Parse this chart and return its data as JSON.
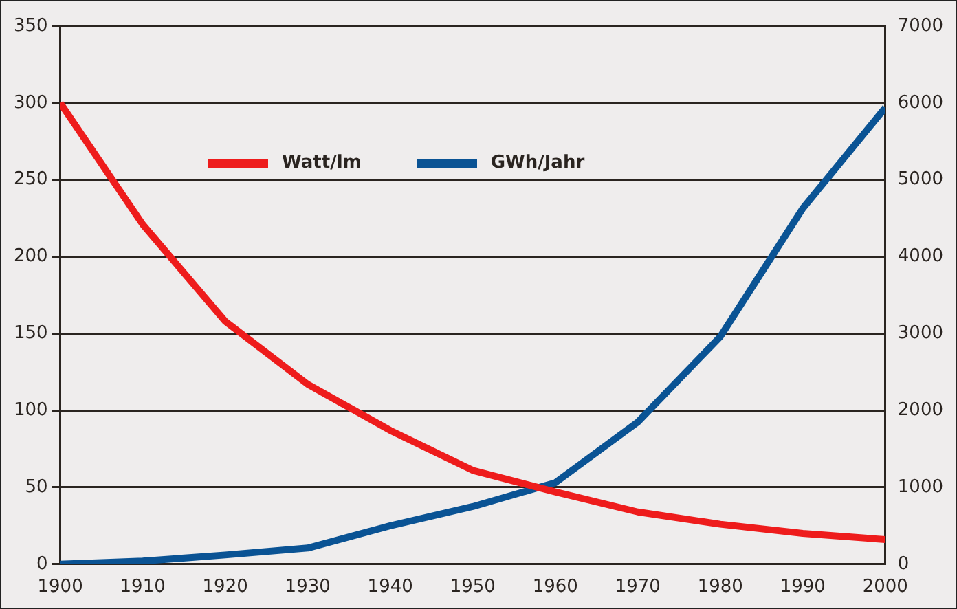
{
  "chart_data": {
    "type": "line",
    "x": [
      1900,
      1910,
      1920,
      1930,
      1940,
      1950,
      1960,
      1970,
      1980,
      1990,
      2000
    ],
    "xlim": [
      1900,
      2000
    ],
    "xticks": [
      1900,
      1910,
      1920,
      1930,
      1940,
      1950,
      1960,
      1970,
      1980,
      1990,
      2000
    ],
    "ylim": [
      0,
      350
    ],
    "yticks": [
      0,
      50,
      100,
      150,
      200,
      250,
      300,
      350
    ],
    "y2lim": [
      0,
      7000
    ],
    "y2ticks": [
      0,
      1000,
      2000,
      3000,
      4000,
      5000,
      6000,
      7000
    ],
    "series": [
      {
        "name": "Watt/lm",
        "color": "#ee1c1c",
        "values": [
          300,
          221,
          158,
          117,
          87,
          61,
          47,
          34,
          26,
          20,
          16
        ]
      },
      {
        "name": "GWh/Jahr",
        "color": "#0a5394",
        "axis": "y2",
        "values": [
          0,
          40,
          120,
          210,
          500,
          750,
          1060,
          1850,
          2960,
          4630,
          5940
        ]
      }
    ],
    "grid": "y",
    "legend": "top",
    "marker": "none",
    "line_style": "solid"
  }
}
